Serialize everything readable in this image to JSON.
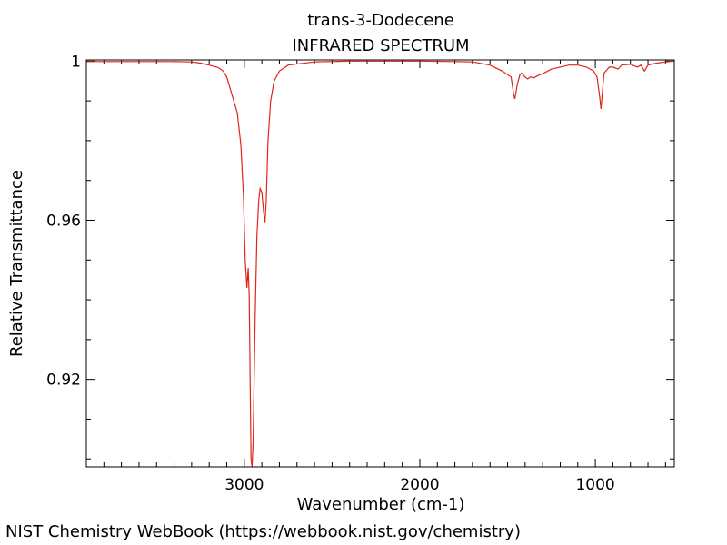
{
  "footer": "NIST Chemistry WebBook (https://webbook.nist.gov/chemistry)",
  "colors": {
    "spectrum": "#e0241b",
    "axes": "#000000",
    "background": "#ffffff"
  },
  "chart_data": {
    "type": "line",
    "title": "trans-3-Dodecene",
    "subtitle": "INFRARED SPECTRUM",
    "xlabel": "Wavenumber (cm-1)",
    "ylabel": "Relative Transmittance",
    "xlim": [
      3900,
      550
    ],
    "x_reversed": true,
    "ylim": [
      0.898,
      1.0003
    ],
    "grid": false,
    "legend": "none",
    "x_ticks": [
      {
        "value": 3000,
        "label": "3000"
      },
      {
        "value": 2000,
        "label": "2000"
      },
      {
        "value": 1000,
        "label": "1000"
      }
    ],
    "y_ticks": [
      {
        "value": 1.0,
        "label": "1"
      },
      {
        "value": 0.96,
        "label": "0.96"
      },
      {
        "value": 0.92,
        "label": "0.92"
      }
    ],
    "series": [
      {
        "values": [
          [
            3900,
            0.9999
          ],
          [
            3600,
            0.9999
          ],
          [
            3400,
            0.9999
          ],
          [
            3300,
            0.9998
          ],
          [
            3250,
            0.9995
          ],
          [
            3200,
            0.999
          ],
          [
            3150,
            0.9984
          ],
          [
            3120,
            0.9975
          ],
          [
            3100,
            0.996
          ],
          [
            3080,
            0.993
          ],
          [
            3060,
            0.99
          ],
          [
            3040,
            0.987
          ],
          [
            3020,
            0.979
          ],
          [
            3005,
            0.966
          ],
          [
            2995,
            0.95
          ],
          [
            2985,
            0.943
          ],
          [
            2978,
            0.948
          ],
          [
            2972,
            0.941
          ],
          [
            2962,
            0.9
          ],
          [
            2956,
            0.898
          ],
          [
            2950,
            0.904
          ],
          [
            2938,
            0.936
          ],
          [
            2928,
            0.956
          ],
          [
            2918,
            0.965
          ],
          [
            2910,
            0.968
          ],
          [
            2900,
            0.967
          ],
          [
            2890,
            0.962
          ],
          [
            2882,
            0.9595
          ],
          [
            2875,
            0.965
          ],
          [
            2865,
            0.98
          ],
          [
            2850,
            0.99
          ],
          [
            2830,
            0.995
          ],
          [
            2800,
            0.9975
          ],
          [
            2750,
            0.999
          ],
          [
            2600,
            0.9998
          ],
          [
            2400,
            1.0
          ],
          [
            2200,
            1.0
          ],
          [
            2000,
            1.0
          ],
          [
            1800,
            0.9999
          ],
          [
            1700,
            0.9998
          ],
          [
            1600,
            0.999
          ],
          [
            1530,
            0.9975
          ],
          [
            1480,
            0.996
          ],
          [
            1465,
            0.9915
          ],
          [
            1458,
            0.9905
          ],
          [
            1445,
            0.994
          ],
          [
            1430,
            0.9965
          ],
          [
            1420,
            0.997
          ],
          [
            1400,
            0.996
          ],
          [
            1385,
            0.9955
          ],
          [
            1370,
            0.996
          ],
          [
            1350,
            0.9958
          ],
          [
            1320,
            0.9965
          ],
          [
            1300,
            0.9968
          ],
          [
            1250,
            0.998
          ],
          [
            1200,
            0.9985
          ],
          [
            1150,
            0.999
          ],
          [
            1100,
            0.999
          ],
          [
            1050,
            0.9985
          ],
          [
            1010,
            0.9975
          ],
          [
            990,
            0.996
          ],
          [
            975,
            0.991
          ],
          [
            968,
            0.988
          ],
          [
            960,
            0.992
          ],
          [
            950,
            0.997
          ],
          [
            920,
            0.9985
          ],
          [
            900,
            0.9985
          ],
          [
            870,
            0.998
          ],
          [
            850,
            0.999
          ],
          [
            800,
            0.9992
          ],
          [
            760,
            0.9985
          ],
          [
            740,
            0.999
          ],
          [
            720,
            0.9975
          ],
          [
            700,
            0.999
          ],
          [
            650,
            0.9995
          ],
          [
            600,
            0.9998
          ],
          [
            550,
            1.0
          ]
        ]
      }
    ]
  }
}
